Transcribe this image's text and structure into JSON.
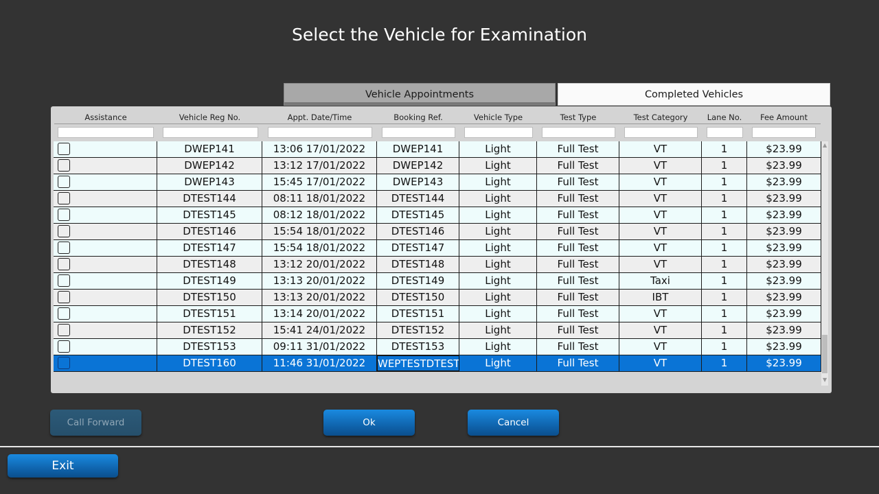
{
  "title": "Select the Vehicle for Examination",
  "tabs": [
    {
      "label": "Vehicle Appointments"
    },
    {
      "label": "Completed Vehicles"
    }
  ],
  "columns": [
    "Assistance",
    "Vehicle Reg No.",
    "Appt. Date/Time",
    "Booking Ref.",
    "Vehicle Type",
    "Test Type",
    "Test Category",
    "Lane No.",
    "Fee Amount"
  ],
  "rows": [
    {
      "reg": "DWEP141",
      "appt": "13:06 17/01/2022",
      "booking": "DWEP141",
      "vtype": "Light",
      "ttype": "Full Test",
      "category": "VT",
      "lane": "1",
      "fee": "$23.99"
    },
    {
      "reg": "DWEP142",
      "appt": "13:12 17/01/2022",
      "booking": "DWEP142",
      "vtype": "Light",
      "ttype": "Full Test",
      "category": "VT",
      "lane": "1",
      "fee": "$23.99"
    },
    {
      "reg": "DWEP143",
      "appt": "15:45 17/01/2022",
      "booking": "DWEP143",
      "vtype": "Light",
      "ttype": "Full Test",
      "category": "VT",
      "lane": "1",
      "fee": "$23.99"
    },
    {
      "reg": "DTEST144",
      "appt": "08:11 18/01/2022",
      "booking": "DTEST144",
      "vtype": "Light",
      "ttype": "Full Test",
      "category": "VT",
      "lane": "1",
      "fee": "$23.99"
    },
    {
      "reg": "DTEST145",
      "appt": "08:12 18/01/2022",
      "booking": "DTEST145",
      "vtype": "Light",
      "ttype": "Full Test",
      "category": "VT",
      "lane": "1",
      "fee": "$23.99"
    },
    {
      "reg": "DTEST146",
      "appt": "15:54 18/01/2022",
      "booking": "DTEST146",
      "vtype": "Light",
      "ttype": "Full Test",
      "category": "VT",
      "lane": "1",
      "fee": "$23.99"
    },
    {
      "reg": "DTEST147",
      "appt": "15:54 18/01/2022",
      "booking": "DTEST147",
      "vtype": "Light",
      "ttype": "Full Test",
      "category": "VT",
      "lane": "1",
      "fee": "$23.99"
    },
    {
      "reg": "DTEST148",
      "appt": "13:12 20/01/2022",
      "booking": "DTEST148",
      "vtype": "Light",
      "ttype": "Full Test",
      "category": "VT",
      "lane": "1",
      "fee": "$23.99"
    },
    {
      "reg": "DTEST149",
      "appt": "13:13 20/01/2022",
      "booking": "DTEST149",
      "vtype": "Light",
      "ttype": "Full Test",
      "category": "Taxi",
      "lane": "1",
      "fee": "$23.99"
    },
    {
      "reg": "DTEST150",
      "appt": "13:13 20/01/2022",
      "booking": "DTEST150",
      "vtype": "Light",
      "ttype": "Full Test",
      "category": "IBT",
      "lane": "1",
      "fee": "$23.99"
    },
    {
      "reg": "DTEST151",
      "appt": "13:14 20/01/2022",
      "booking": "DTEST151",
      "vtype": "Light",
      "ttype": "Full Test",
      "category": "VT",
      "lane": "1",
      "fee": "$23.99"
    },
    {
      "reg": "DTEST152",
      "appt": "15:41 24/01/2022",
      "booking": "DTEST152",
      "vtype": "Light",
      "ttype": "Full Test",
      "category": "VT",
      "lane": "1",
      "fee": "$23.99"
    },
    {
      "reg": "DTEST153",
      "appt": "09:11 31/01/2022",
      "booking": "DTEST153",
      "vtype": "Light",
      "ttype": "Full Test",
      "category": "VT",
      "lane": "1",
      "fee": "$23.99"
    },
    {
      "reg": "DTEST160",
      "appt": "11:46 31/01/2022",
      "booking": "WEPTESTDTEST",
      "vtype": "Light",
      "ttype": "Full Test",
      "category": "VT",
      "lane": "1",
      "fee": "$23.99",
      "selected": true
    }
  ],
  "buttons": {
    "call_forward": "Call Forward",
    "ok": "Ok",
    "cancel": "Cancel",
    "exit": "Exit"
  },
  "colors": {
    "background": "#333333",
    "selected_row": "#0a74d6",
    "button": "#0e5fa6"
  }
}
